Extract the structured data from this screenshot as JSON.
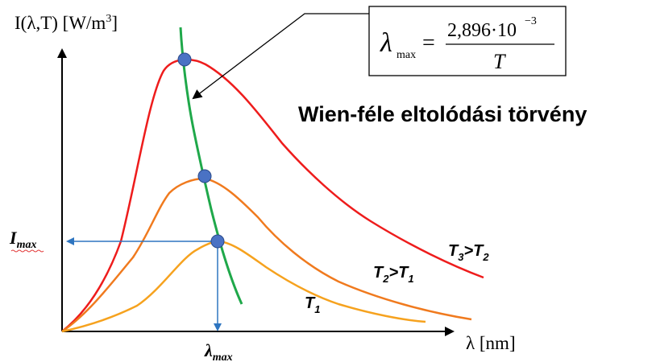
{
  "y_axis_label": {
    "main": "I(λ,T) [W/m",
    "sup": "3",
    "close": "]"
  },
  "x_axis_label": "λ [nm]",
  "title": "Wien-féle eltolódási törvény",
  "formula": {
    "lhs_symbol": "λ",
    "lhs_subscript": "max",
    "equals": "=",
    "numerator_base": "2,896·10",
    "numerator_exponent": "−3",
    "denominator": "T"
  },
  "curve_labels": {
    "t3": {
      "main": "T",
      "sub": "3",
      "rel": ">T",
      "sub2": "2"
    },
    "t2": {
      "main": "T",
      "sub": "2",
      "rel": ">T",
      "sub2": "1"
    },
    "t1": {
      "main": "T",
      "sub": "1"
    }
  },
  "imax_label": {
    "main": "I",
    "sub": "max"
  },
  "lambda_max_label": {
    "main": "λ",
    "sub": "max"
  },
  "colors": {
    "t3_curve": "#ee1c1c",
    "t2_curve": "#f07a1e",
    "t1_curve": "#f6a21e",
    "wien_line": "#1fa84a",
    "markers": "#4a72c4",
    "guide_arrows": "#2e75c0",
    "axes": "#000000"
  },
  "icons": {
    "marker": "peak-dot",
    "arrow": "arrowhead"
  }
}
